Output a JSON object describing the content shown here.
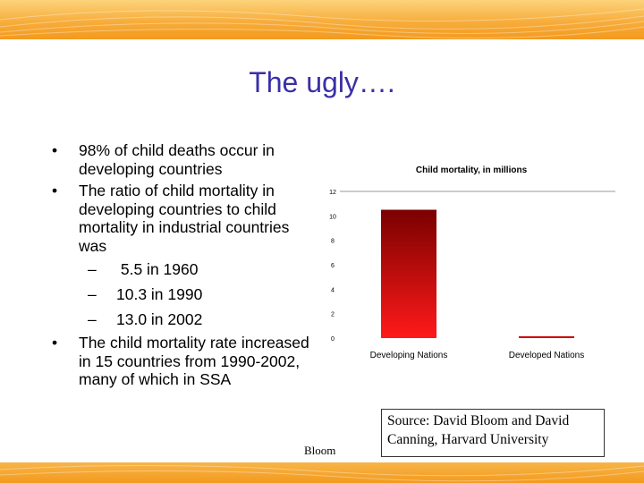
{
  "slide": {
    "title": "The ugly….",
    "bullets": [
      {
        "marker": "•",
        "text": "98% of child deaths occur in developing countries"
      },
      {
        "marker": "•",
        "text": "The ratio of child mortality in developing countries to child mortality in industrial countries was",
        "sub": [
          {
            "marker": "–",
            "text": " 5.5 in 1960"
          },
          {
            "marker": "–",
            "text": "10.3 in 1990"
          },
          {
            "marker": "–",
            "text": "13.0 in 2002"
          }
        ]
      },
      {
        "marker": "•",
        "text": "The child mortality rate increased in 15 countries from 1990-2002, many of which in SSA"
      }
    ],
    "source": "Source: David Bloom and David Canning, Harvard University",
    "footer": "Bloom"
  },
  "colors": {
    "title": "#3a2fa8",
    "band": "#f39a1e",
    "bar_dark": "#7a0000",
    "bar_light": "#ff1a1a",
    "bar_thin": "#cc0000"
  },
  "chart_data": {
    "type": "bar",
    "title": "Child mortality, in millions",
    "categories": [
      "Developing Nations",
      "Developed Nations"
    ],
    "values": [
      10.5,
      0.1
    ],
    "yticks": [
      0,
      2,
      4,
      6,
      8,
      10,
      12
    ],
    "ylim": [
      0,
      12
    ],
    "xlabel": "",
    "ylabel": "",
    "grid": false
  }
}
